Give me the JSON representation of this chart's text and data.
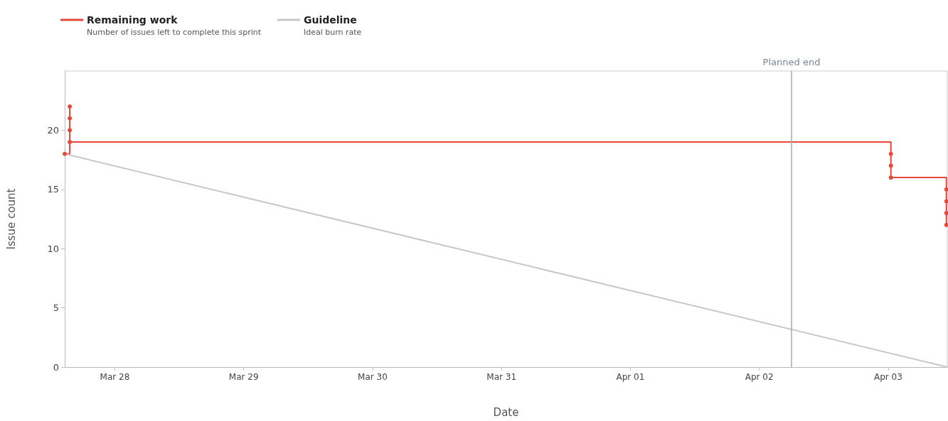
{
  "chart_data": {
    "type": "line",
    "xlabel": "Date",
    "ylabel": "Issue count",
    "annotations": [
      "Number of issues left to complete this sprint",
      "Ideal burn rate"
    ],
    "series": [
      {
        "name": "Remaining work",
        "type": "step",
        "color": "#e5483a",
        "marker": "circle",
        "x": [
          "--03-27T14:40",
          "--03-27T15:36",
          "--03-27T15:36",
          "--03-27T15:36",
          "--03-27T15:36",
          "--04-03T00:30",
          "--04-03T00:30",
          "--04-03T00:30",
          "--04-03T10:50",
          "--04-03T10:50",
          "--04-03T10:50",
          "--04-03T10:50"
        ],
        "values": [
          18,
          22,
          21,
          20,
          19,
          18,
          17,
          16,
          15,
          14,
          13,
          12
        ]
      },
      {
        "name": "Guideline",
        "color": "#c8c8c8",
        "marker": "none",
        "x": [
          "--03-27T14:40",
          "--04-03T11:00"
        ],
        "values": [
          18,
          0
        ]
      }
    ],
    "xlim": [
      "--03-27T14:40",
      "--04-03T11:00"
    ],
    "xticks": [
      {
        "value": "--03-28",
        "label": "Mar 28"
      },
      {
        "value": "--03-29",
        "label": "Mar 29"
      },
      {
        "value": "--03-30",
        "label": "Mar 30"
      },
      {
        "value": "--03-31",
        "label": "Mar 31"
      },
      {
        "value": "--04-01",
        "label": "Apr 01"
      },
      {
        "value": "--04-02",
        "label": "Apr 02"
      },
      {
        "value": "--04-03",
        "label": "Apr 03"
      }
    ],
    "ylim": [
      0,
      25
    ],
    "yticks": [
      0,
      5,
      10,
      15,
      20
    ],
    "ref_lines": [
      {
        "axis": "x",
        "value": "--04-02T06:00",
        "label": "Planned end",
        "color": "#a8a8a8"
      }
    ],
    "grid": false,
    "legend": "top left"
  }
}
